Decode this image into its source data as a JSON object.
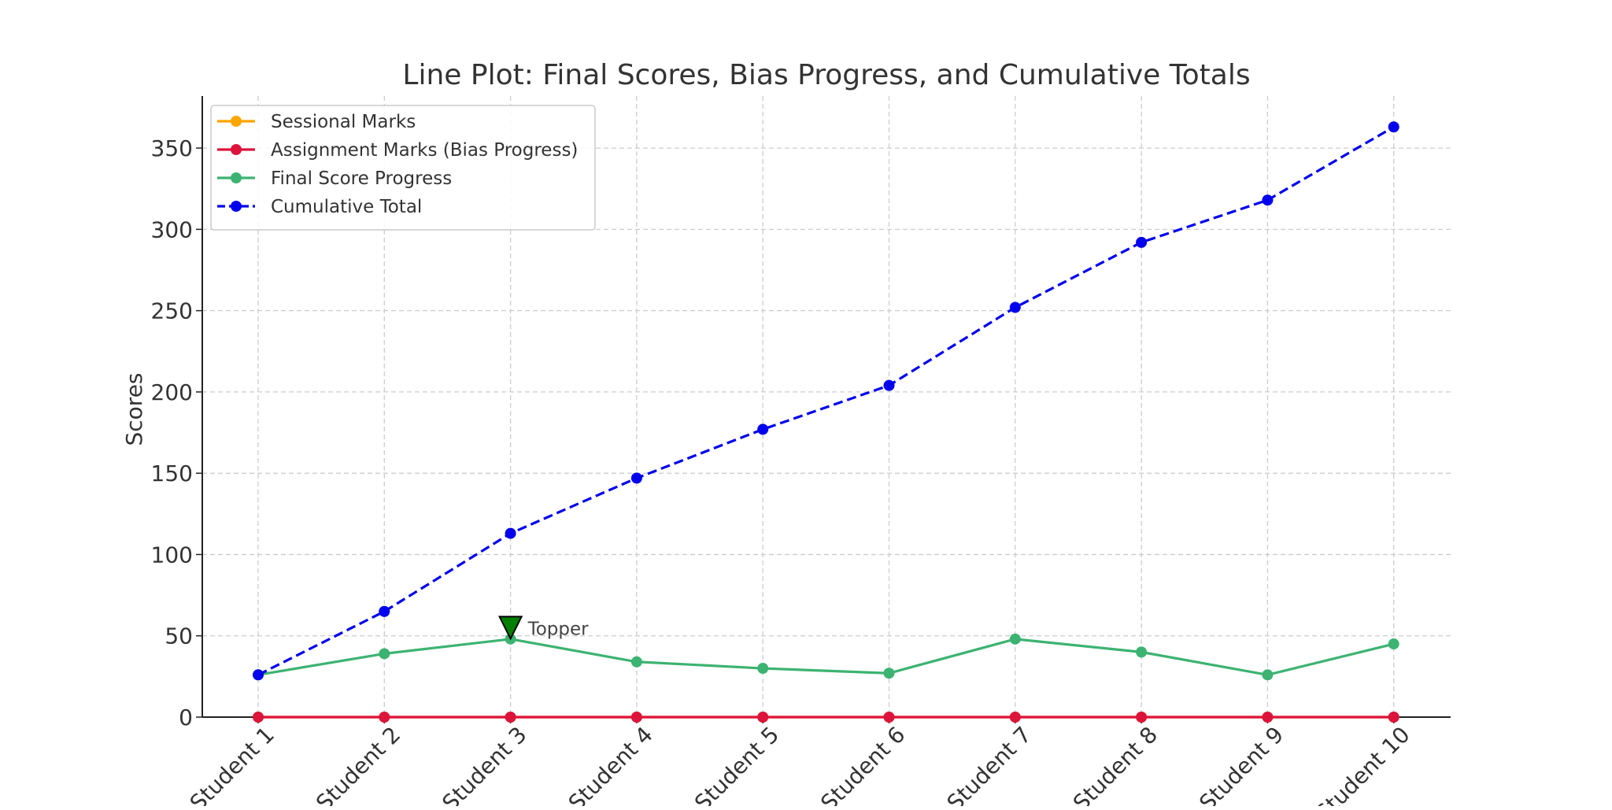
{
  "chart_data": {
    "type": "line",
    "title": "Line Plot: Final Scores, Bias Progress, and Cumulative Totals",
    "xlabel": "",
    "ylabel": "Scores",
    "categories": [
      "Student 1",
      "Student 2",
      "Student 3",
      "Student 4",
      "Student 5",
      "Student 6",
      "Student 7",
      "Student 8",
      "Student 9",
      "Student 10"
    ],
    "ylim": [
      0,
      382
    ],
    "yticks": [
      0,
      50,
      100,
      150,
      200,
      250,
      300,
      350
    ],
    "grid": true,
    "legend_position": "top-left",
    "series": [
      {
        "name": "Sessional Marks",
        "color": "#FFA500",
        "style": "solid",
        "marker": "circle",
        "values": [
          0,
          0,
          0,
          0,
          0,
          0,
          0,
          0,
          0,
          0
        ]
      },
      {
        "name": "Assignment Marks (Bias Progress)",
        "color": "#DC143C",
        "style": "solid",
        "marker": "circle",
        "values": [
          0,
          0,
          0,
          0,
          0,
          0,
          0,
          0,
          0,
          0
        ]
      },
      {
        "name": "Final Score Progress",
        "color": "#3CB371",
        "style": "solid",
        "marker": "circle",
        "values": [
          26,
          39,
          48,
          34,
          30,
          27,
          48,
          40,
          26,
          45
        ]
      },
      {
        "name": "Cumulative Total",
        "color": "#0000EE",
        "style": "dashed",
        "marker": "circle",
        "values": [
          26,
          65,
          113,
          147,
          177,
          204,
          252,
          292,
          318,
          363
        ]
      }
    ],
    "annotations": [
      {
        "text": "Topper",
        "category": "Student 3",
        "y": 55,
        "marker": "triangle-down",
        "color": "#008000"
      }
    ]
  }
}
